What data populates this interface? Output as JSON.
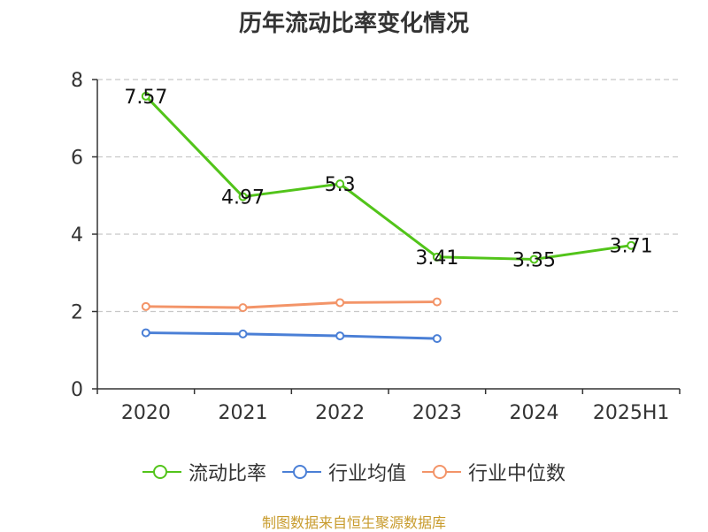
{
  "chart_data": {
    "type": "line",
    "title": "历年流动比率变化情况",
    "categories": [
      "2020",
      "2021",
      "2022",
      "2023",
      "2024",
      "2025H1"
    ],
    "ylim": [
      0,
      8
    ],
    "yticks": [
      0,
      2,
      4,
      6,
      8
    ],
    "grid": true,
    "legend_position": "bottom",
    "series": [
      {
        "name": "流动比率",
        "color": "#52c41a",
        "values": [
          7.57,
          4.97,
          5.3,
          3.41,
          3.35,
          3.71
        ],
        "labels": [
          "7.57",
          "4.97",
          "5.3",
          "3.41",
          "3.35",
          "3.71"
        ]
      },
      {
        "name": "行业均值",
        "color": "#4a7fd6",
        "values": [
          1.45,
          1.42,
          1.37,
          1.3,
          null,
          null
        ]
      },
      {
        "name": "行业中位数",
        "color": "#f39468",
        "values": [
          2.13,
          2.1,
          2.23,
          2.25,
          null,
          null
        ]
      }
    ]
  },
  "source": "制图数据来自恒生聚源数据库"
}
